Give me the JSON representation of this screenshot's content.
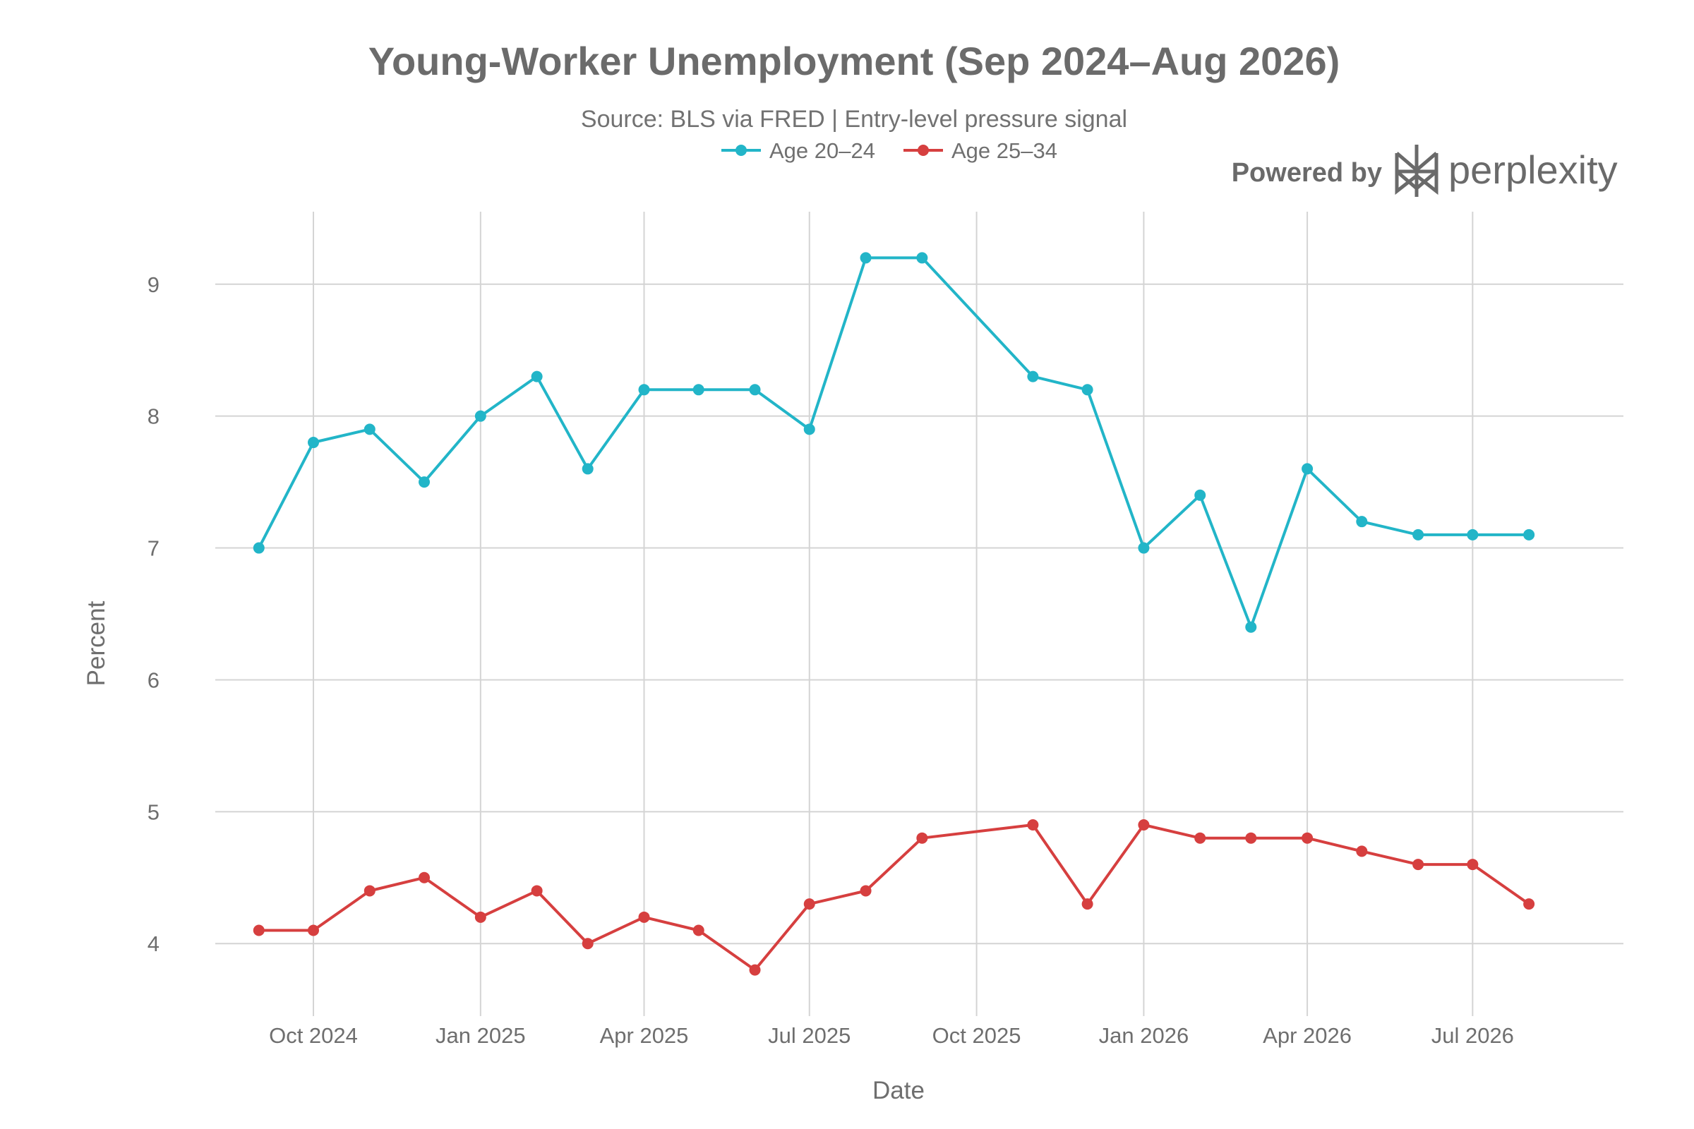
{
  "chart_data": {
    "type": "line",
    "title": "Young-Worker Unemployment (Sep 2024–Aug 2026)",
    "subtitle": "Source: BLS via FRED | Entry-level pressure signal",
    "xlabel": "Date",
    "ylabel": "Percent",
    "ylim": [
      3.45,
      9.55
    ],
    "yticks": [
      4,
      5,
      6,
      7,
      8,
      9
    ],
    "xlim": [
      "2024-08-08",
      "2026-09-22"
    ],
    "xticks": [
      {
        "date": "2024-10-01",
        "label": "Oct 2024"
      },
      {
        "date": "2025-01-01",
        "label": "Jan 2025"
      },
      {
        "date": "2025-04-01",
        "label": "Apr 2025"
      },
      {
        "date": "2025-07-01",
        "label": "Jul 2025"
      },
      {
        "date": "2025-10-01",
        "label": "Oct 2025"
      },
      {
        "date": "2026-01-01",
        "label": "Jan 2026"
      },
      {
        "date": "2026-04-01",
        "label": "Apr 2026"
      },
      {
        "date": "2026-07-01",
        "label": "Jul 2026"
      }
    ],
    "grid": true,
    "legend_position": "top-center",
    "series": [
      {
        "name": "Age 20–24",
        "color": "#22b5c8",
        "points": [
          {
            "x": "2024-09-01",
            "y": 7.0
          },
          {
            "x": "2024-10-01",
            "y": 7.8
          },
          {
            "x": "2024-11-01",
            "y": 7.9
          },
          {
            "x": "2024-12-01",
            "y": 7.5
          },
          {
            "x": "2025-01-01",
            "y": 8.0
          },
          {
            "x": "2025-02-01",
            "y": 8.3
          },
          {
            "x": "2025-03-01",
            "y": 7.6
          },
          {
            "x": "2025-04-01",
            "y": 8.2
          },
          {
            "x": "2025-05-01",
            "y": 8.2
          },
          {
            "x": "2025-06-01",
            "y": 8.2
          },
          {
            "x": "2025-07-01",
            "y": 7.9
          },
          {
            "x": "2025-08-01",
            "y": 9.2
          },
          {
            "x": "2025-09-01",
            "y": 9.2
          },
          {
            "x": "2025-11-01",
            "y": 8.3
          },
          {
            "x": "2025-12-01",
            "y": 8.2
          },
          {
            "x": "2026-01-01",
            "y": 7.0
          },
          {
            "x": "2026-02-01",
            "y": 7.4
          },
          {
            "x": "2026-03-01",
            "y": 6.4
          },
          {
            "x": "2026-04-01",
            "y": 7.6
          },
          {
            "x": "2026-05-01",
            "y": 7.2
          },
          {
            "x": "2026-06-01",
            "y": 7.1
          },
          {
            "x": "2026-07-01",
            "y": 7.1
          },
          {
            "x": "2026-08-01",
            "y": 7.1
          }
        ]
      },
      {
        "name": "Age 25–34",
        "color": "#d63f3f",
        "points": [
          {
            "x": "2024-09-01",
            "y": 4.1
          },
          {
            "x": "2024-10-01",
            "y": 4.1
          },
          {
            "x": "2024-11-01",
            "y": 4.4
          },
          {
            "x": "2024-12-01",
            "y": 4.5
          },
          {
            "x": "2025-01-01",
            "y": 4.2
          },
          {
            "x": "2025-02-01",
            "y": 4.4
          },
          {
            "x": "2025-03-01",
            "y": 4.0
          },
          {
            "x": "2025-04-01",
            "y": 4.2
          },
          {
            "x": "2025-05-01",
            "y": 4.1
          },
          {
            "x": "2025-06-01",
            "y": 3.8
          },
          {
            "x": "2025-07-01",
            "y": 4.3
          },
          {
            "x": "2025-08-01",
            "y": 4.4
          },
          {
            "x": "2025-09-01",
            "y": 4.8
          },
          {
            "x": "2025-11-01",
            "y": 4.9
          },
          {
            "x": "2025-12-01",
            "y": 4.3
          },
          {
            "x": "2026-01-01",
            "y": 4.9
          },
          {
            "x": "2026-02-01",
            "y": 4.8
          },
          {
            "x": "2026-03-01",
            "y": 4.8
          },
          {
            "x": "2026-04-01",
            "y": 4.8
          },
          {
            "x": "2026-05-01",
            "y": 4.7
          },
          {
            "x": "2026-06-01",
            "y": 4.6
          },
          {
            "x": "2026-07-01",
            "y": 4.6
          },
          {
            "x": "2026-08-01",
            "y": 4.3
          }
        ]
      }
    ]
  },
  "branding": {
    "powered_by": "Powered by",
    "name": "perplexity",
    "logo_icon": "perplexity-logo-icon",
    "color": "#6a6a6a"
  }
}
